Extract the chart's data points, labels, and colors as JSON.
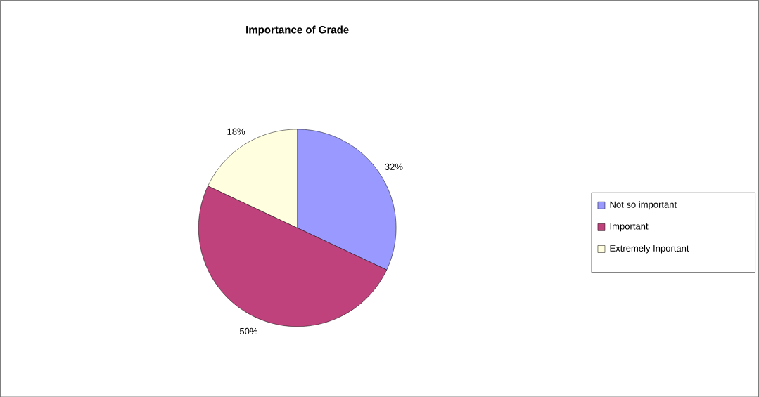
{
  "chart_data": {
    "type": "pie",
    "title": "Importance of Grade",
    "categories": [
      "Not so important",
      "Important",
      "Extremely Inportant"
    ],
    "values": [
      32,
      50,
      18
    ],
    "colors": [
      "#9999ff",
      "#c0427c",
      "#ffffe0"
    ],
    "value_labels": [
      "32%",
      "50%",
      "18%"
    ],
    "legend": "right"
  }
}
